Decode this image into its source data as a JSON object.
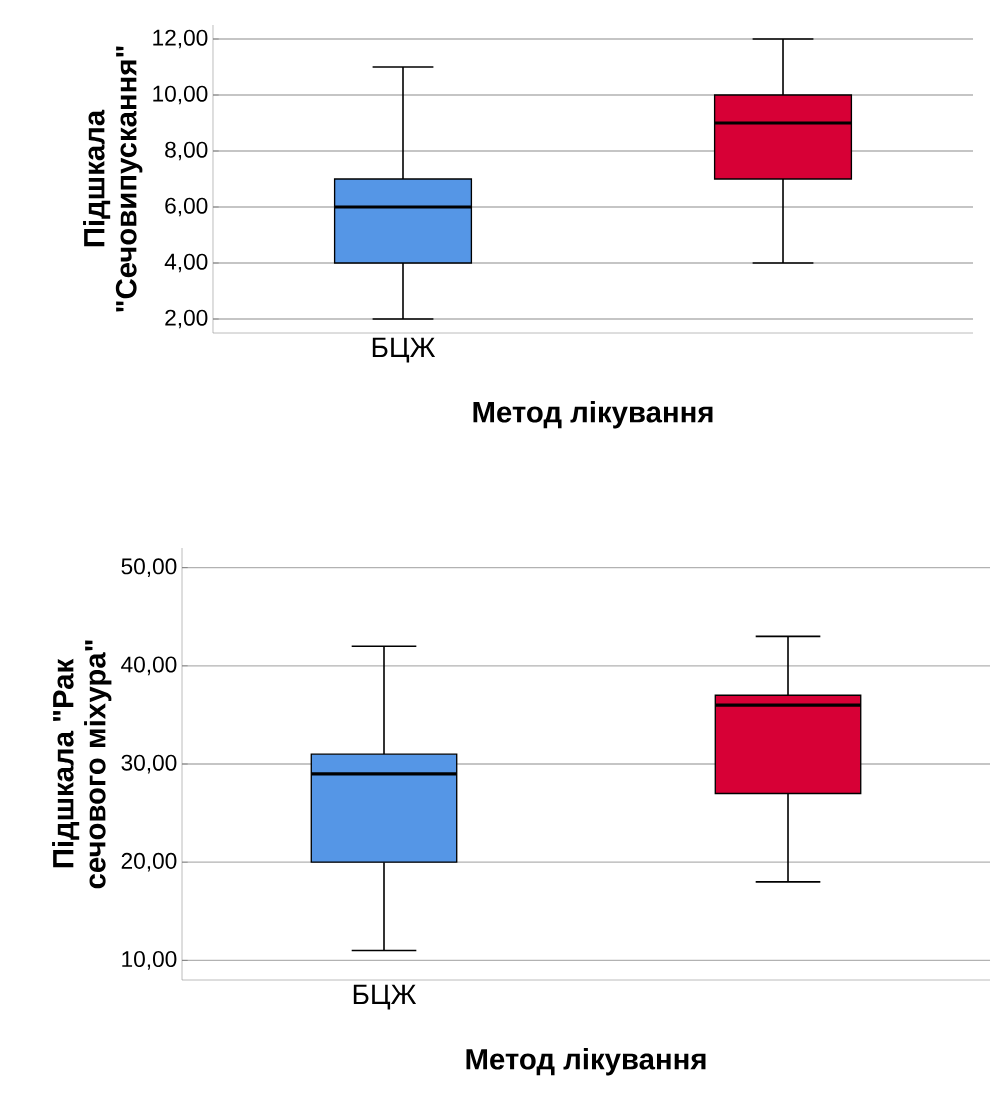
{
  "chart_data": [
    {
      "type": "box",
      "ylabel": "Підшкала\n\"Сечовипускання\"",
      "xlabel": "Метод лікування",
      "categories": [
        "БЦЖ",
        null
      ],
      "colors": [
        "#5596e6",
        "#d70036"
      ],
      "grid": "y",
      "boxes": [
        {
          "low": 2,
          "q1": 4,
          "median": 6,
          "q3": 7,
          "high": 11
        },
        {
          "low": 4,
          "q1": 7,
          "median": 9,
          "q3": 10,
          "high": 12
        }
      ],
      "ylim": [
        1.5,
        12.5
      ],
      "yticks": [
        {
          "value": 2,
          "label": "2,00"
        },
        {
          "value": 4,
          "label": "4,00"
        },
        {
          "value": 6,
          "label": "6,00"
        },
        {
          "value": 8,
          "label": "8,00"
        },
        {
          "value": 10,
          "label": "10,00"
        },
        {
          "value": 12,
          "label": "12,00"
        }
      ]
    },
    {
      "type": "box",
      "ylabel": "Підшкала \"Рак\nсечового міхура\"",
      "xlabel": "Метод лікування",
      "categories": [
        "БЦЖ",
        null
      ],
      "colors": [
        "#5596e6",
        "#d70036"
      ],
      "grid": "y",
      "boxes": [
        {
          "low": 11,
          "q1": 20,
          "median": 29,
          "q3": 31,
          "high": 42
        },
        {
          "low": 18,
          "q1": 27,
          "median": 36,
          "q3": 37,
          "high": 43
        }
      ],
      "ylim": [
        8,
        52
      ],
      "yticks": [
        {
          "value": 10,
          "label": "10,00"
        },
        {
          "value": 20,
          "label": "20,00"
        },
        {
          "value": 30,
          "label": "30,00"
        },
        {
          "value": 40,
          "label": "40,00"
        },
        {
          "value": 50,
          "label": "50,00"
        }
      ]
    }
  ]
}
